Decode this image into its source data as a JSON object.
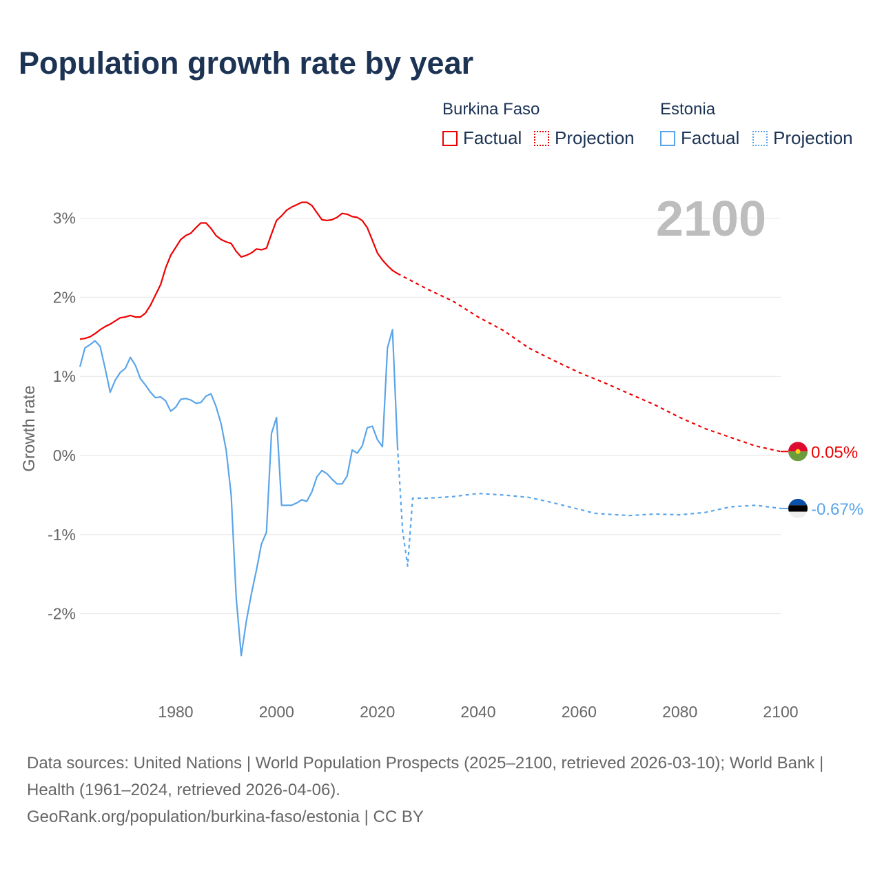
{
  "title": "Population growth rate by year",
  "legend": {
    "countries": [
      {
        "name": "Burkina Faso",
        "factual_label": "Factual",
        "projection_label": "Projection",
        "color": "#ee0000"
      },
      {
        "name": "Estonia",
        "factual_label": "Factual",
        "projection_label": "Projection",
        "color": "#5aa5ea"
      }
    ]
  },
  "year_label": "2100",
  "footer": {
    "sources": "Data sources: United Nations | World Population Prospects (2025–2100, retrieved 2026-03-10); World Bank | Health (1961–2024, retrieved 2026-04-06).",
    "credit": "GeoRank.org/population/burkina-faso/estonia | CC BY"
  },
  "chart_data": {
    "type": "line",
    "title": "Population growth rate by year",
    "xlabel": "",
    "ylabel": "Growth rate",
    "xlim": [
      1961,
      2100
    ],
    "ylim": [
      -2.95,
      3.3
    ],
    "x_ticks": [
      1980,
      2000,
      2020,
      2040,
      2060,
      2080,
      2100
    ],
    "y_ticks": [
      3,
      2,
      1,
      0,
      -1,
      -2
    ],
    "y_tick_labels": [
      "3%",
      "2%",
      "1%",
      "0%",
      "-1%",
      "-2%"
    ],
    "grid": true,
    "legend_position": "top-right",
    "series": [
      {
        "name": "Burkina Faso",
        "kind": "factual",
        "color": "#ee0000",
        "x": [
          1961,
          1962,
          1963,
          1964,
          1965,
          1966,
          1967,
          1968,
          1969,
          1970,
          1971,
          1972,
          1973,
          1974,
          1975,
          1976,
          1977,
          1978,
          1979,
          1980,
          1981,
          1982,
          1983,
          1984,
          1985,
          1986,
          1987,
          1988,
          1989,
          1990,
          1991,
          1992,
          1993,
          1994,
          1995,
          1996,
          1997,
          1998,
          1999,
          2000,
          2001,
          2002,
          2003,
          2004,
          2005,
          2006,
          2007,
          2008,
          2009,
          2010,
          2011,
          2012,
          2013,
          2014,
          2015,
          2016,
          2017,
          2018,
          2019,
          2020,
          2021,
          2022,
          2023,
          2024
        ],
        "y": [
          1.47,
          1.48,
          1.5,
          1.54,
          1.59,
          1.63,
          1.66,
          1.7,
          1.74,
          1.75,
          1.77,
          1.75,
          1.75,
          1.8,
          1.9,
          2.03,
          2.16,
          2.37,
          2.53,
          2.63,
          2.73,
          2.78,
          2.81,
          2.88,
          2.94,
          2.94,
          2.87,
          2.78,
          2.73,
          2.7,
          2.68,
          2.58,
          2.51,
          2.53,
          2.56,
          2.61,
          2.6,
          2.62,
          2.8,
          2.97,
          3.03,
          3.1,
          3.14,
          3.17,
          3.2,
          3.2,
          3.16,
          3.07,
          2.98,
          2.97,
          2.98,
          3.01,
          3.06,
          3.05,
          3.02,
          3.01,
          2.97,
          2.88,
          2.72,
          2.56,
          2.47,
          2.4,
          2.34,
          2.3
        ]
      },
      {
        "name": "Burkina Faso",
        "kind": "projection",
        "color": "#ee0000",
        "x": [
          2024,
          2030,
          2035,
          2040,
          2045,
          2050,
          2055,
          2060,
          2065,
          2070,
          2075,
          2080,
          2085,
          2090,
          2095,
          2100
        ],
        "y": [
          2.3,
          2.1,
          1.95,
          1.75,
          1.58,
          1.36,
          1.2,
          1.05,
          0.92,
          0.78,
          0.64,
          0.48,
          0.34,
          0.23,
          0.12,
          0.05
        ]
      },
      {
        "name": "Estonia",
        "kind": "factual",
        "color": "#5aa5ea",
        "x": [
          1961,
          1962,
          1963,
          1964,
          1965,
          1966,
          1967,
          1968,
          1969,
          1970,
          1971,
          1972,
          1973,
          1974,
          1975,
          1976,
          1977,
          1978,
          1979,
          1980,
          1981,
          1982,
          1983,
          1984,
          1985,
          1986,
          1987,
          1988,
          1989,
          1990,
          1991,
          1992,
          1993,
          1994,
          1995,
          1996,
          1997,
          1998,
          1999,
          2000,
          2001,
          2002,
          2003,
          2004,
          2005,
          2006,
          2007,
          2008,
          2009,
          2010,
          2011,
          2012,
          2013,
          2014,
          2015,
          2016,
          2017,
          2018,
          2019,
          2020,
          2021,
          2022,
          2023,
          2024
        ],
        "y": [
          1.12,
          1.36,
          1.4,
          1.45,
          1.38,
          1.1,
          0.8,
          0.95,
          1.05,
          1.1,
          1.24,
          1.14,
          0.97,
          0.89,
          0.8,
          0.73,
          0.74,
          0.69,
          0.56,
          0.61,
          0.71,
          0.72,
          0.7,
          0.66,
          0.67,
          0.75,
          0.78,
          0.62,
          0.4,
          0.07,
          -0.5,
          -1.8,
          -2.53,
          -2.1,
          -1.75,
          -1.45,
          -1.12,
          -0.97,
          0.28,
          0.48,
          -0.63,
          -0.63,
          -0.63,
          -0.6,
          -0.56,
          -0.58,
          -0.46,
          -0.27,
          -0.19,
          -0.23,
          -0.3,
          -0.36,
          -0.36,
          -0.26,
          0.07,
          0.03,
          0.12,
          0.35,
          0.37,
          0.2,
          0.11,
          1.36,
          1.59,
          0.11
        ]
      },
      {
        "name": "Estonia",
        "kind": "projection",
        "color": "#5aa5ea",
        "x": [
          2024,
          2025,
          2026,
          2027,
          2030,
          2035,
          2040,
          2045,
          2050,
          2055,
          2060,
          2063,
          2065,
          2070,
          2075,
          2080,
          2085,
          2090,
          2095,
          2100
        ],
        "y": [
          0.11,
          -0.95,
          -1.4,
          -0.54,
          -0.54,
          -0.52,
          -0.48,
          -0.5,
          -0.53,
          -0.6,
          -0.68,
          -0.73,
          -0.74,
          -0.76,
          -0.74,
          -0.75,
          -0.72,
          -0.65,
          -0.63,
          -0.67
        ]
      }
    ],
    "end_labels": [
      {
        "country": "Burkina Faso",
        "value": 0.05,
        "text": "0.05%"
      },
      {
        "country": "Estonia",
        "value": -0.67,
        "text": "-0.67%"
      }
    ]
  }
}
